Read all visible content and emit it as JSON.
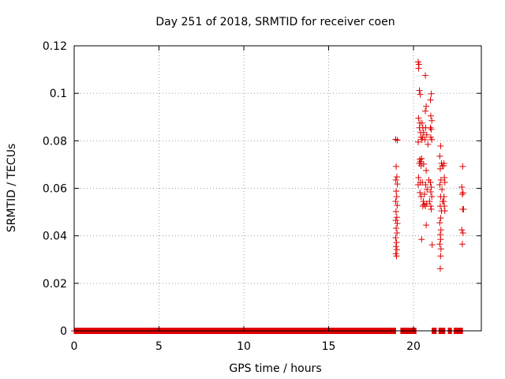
{
  "chart_data": {
    "type": "scatter",
    "title": "Day 251 of 2018, SRMTID for receiver coen",
    "xlabel": "GPS time / hours",
    "ylabel": "SRMTID / TECUs",
    "xlim": [
      0,
      24
    ],
    "ylim": [
      0,
      0.12
    ],
    "xticks": [
      0,
      5,
      10,
      15,
      20
    ],
    "xtick_labels": [
      "0",
      "5",
      "10",
      "15",
      "20"
    ],
    "yticks": [
      0,
      0.02,
      0.04,
      0.06,
      0.08,
      0.1,
      0.12
    ],
    "ytick_labels": [
      "0",
      "0.02",
      "0.04",
      "0.06",
      "0.08",
      "0.1",
      "0.12"
    ],
    "grid": true,
    "marker": "+",
    "marker_color": "#e00000",
    "baseline": {
      "segments": [
        [
          0,
          18.95
        ],
        [
          19.25,
          20.15
        ],
        [
          21.1,
          21.35
        ],
        [
          21.5,
          21.85
        ],
        [
          22.05,
          22.25
        ],
        [
          22.4,
          22.9
        ]
      ],
      "step": 0.012,
      "y": 0
    },
    "points": [
      [
        18.95,
        0.0806
      ],
      [
        19.05,
        0.0803
      ],
      [
        18.98,
        0.0692
      ],
      [
        19.02,
        0.0648
      ],
      [
        18.96,
        0.0635
      ],
      [
        19.05,
        0.0618
      ],
      [
        18.98,
        0.0588
      ],
      [
        19.01,
        0.0565
      ],
      [
        18.95,
        0.0545
      ],
      [
        19.04,
        0.0528
      ],
      [
        18.97,
        0.0502
      ],
      [
        19.02,
        0.0478
      ],
      [
        18.96,
        0.0465
      ],
      [
        19.05,
        0.0452
      ],
      [
        18.98,
        0.0432
      ],
      [
        19.03,
        0.0412
      ],
      [
        18.95,
        0.0392
      ],
      [
        19.0,
        0.0372
      ],
      [
        18.97,
        0.0355
      ],
      [
        19.02,
        0.0342
      ],
      [
        18.96,
        0.0325
      ],
      [
        19.0,
        0.0315
      ],
      [
        20.28,
        0.1132
      ],
      [
        20.32,
        0.1122
      ],
      [
        20.3,
        0.1105
      ],
      [
        20.35,
        0.1012
      ],
      [
        20.4,
        0.0995
      ],
      [
        20.3,
        0.0895
      ],
      [
        20.38,
        0.0875
      ],
      [
        20.35,
        0.0855
      ],
      [
        20.42,
        0.0835
      ],
      [
        20.28,
        0.0795
      ],
      [
        20.45,
        0.0815
      ],
      [
        20.38,
        0.0722
      ],
      [
        20.42,
        0.0712
      ],
      [
        20.48,
        0.0725
      ],
      [
        20.35,
        0.0705
      ],
      [
        20.45,
        0.0695
      ],
      [
        20.3,
        0.0645
      ],
      [
        20.4,
        0.0625
      ],
      [
        20.28,
        0.0615
      ],
      [
        20.38,
        0.0582
      ],
      [
        20.45,
        0.0565
      ],
      [
        20.5,
        0.0875
      ],
      [
        20.55,
        0.0855
      ],
      [
        20.6,
        0.0835
      ],
      [
        20.5,
        0.0805
      ],
      [
        20.55,
        0.0815
      ],
      [
        20.6,
        0.0702
      ],
      [
        20.52,
        0.0625
      ],
      [
        20.58,
        0.0545
      ],
      [
        20.62,
        0.0532
      ],
      [
        20.55,
        0.0525
      ],
      [
        20.48,
        0.0385
      ],
      [
        20.7,
        0.1075
      ],
      [
        20.75,
        0.0945
      ],
      [
        20.7,
        0.0925
      ],
      [
        20.72,
        0.0855
      ],
      [
        20.78,
        0.0825
      ],
      [
        20.68,
        0.0805
      ],
      [
        20.75,
        0.0675
      ],
      [
        20.72,
        0.0615
      ],
      [
        20.8,
        0.0595
      ],
      [
        20.65,
        0.0575
      ],
      [
        20.78,
        0.0535
      ],
      [
        20.7,
        0.0525
      ],
      [
        20.75,
        0.0445
      ],
      [
        20.85,
        0.0785
      ],
      [
        20.9,
        0.0635
      ],
      [
        21.0,
        0.0972
      ],
      [
        21.05,
        0.0998
      ],
      [
        21.02,
        0.0905
      ],
      [
        21.08,
        0.0885
      ],
      [
        21.0,
        0.0855
      ],
      [
        21.05,
        0.0848
      ],
      [
        21.02,
        0.0815
      ],
      [
        21.08,
        0.0805
      ],
      [
        21.0,
        0.0625
      ],
      [
        21.05,
        0.0605
      ],
      [
        21.02,
        0.0585
      ],
      [
        21.08,
        0.0565
      ],
      [
        20.95,
        0.0545
      ],
      [
        21.02,
        0.0525
      ],
      [
        21.05,
        0.0512
      ],
      [
        21.1,
        0.0362
      ],
      [
        21.6,
        0.0778
      ],
      [
        21.55,
        0.0735
      ],
      [
        21.65,
        0.0705
      ],
      [
        21.58,
        0.0682
      ],
      [
        21.7,
        0.0695
      ],
      [
        21.62,
        0.0635
      ],
      [
        21.55,
        0.0615
      ],
      [
        21.68,
        0.0595
      ],
      [
        21.6,
        0.0565
      ],
      [
        21.72,
        0.0545
      ],
      [
        21.58,
        0.0525
      ],
      [
        21.65,
        0.0505
      ],
      [
        21.6,
        0.0475
      ],
      [
        21.55,
        0.0455
      ],
      [
        21.62,
        0.0425
      ],
      [
        21.58,
        0.0405
      ],
      [
        21.6,
        0.0385
      ],
      [
        21.55,
        0.0365
      ],
      [
        21.62,
        0.0345
      ],
      [
        21.6,
        0.0315
      ],
      [
        21.58,
        0.0262
      ],
      [
        21.8,
        0.0705
      ],
      [
        21.78,
        0.0695
      ],
      [
        21.82,
        0.0645
      ],
      [
        21.85,
        0.0625
      ],
      [
        21.8,
        0.0565
      ],
      [
        21.78,
        0.0545
      ],
      [
        21.82,
        0.0525
      ],
      [
        21.85,
        0.0505
      ],
      [
        22.9,
        0.0692
      ],
      [
        22.85,
        0.0605
      ],
      [
        22.92,
        0.0582
      ],
      [
        22.88,
        0.0575
      ],
      [
        22.95,
        0.0512
      ],
      [
        22.9,
        0.0512
      ],
      [
        22.85,
        0.0425
      ],
      [
        22.92,
        0.0412
      ],
      [
        22.88,
        0.0365
      ]
    ]
  }
}
